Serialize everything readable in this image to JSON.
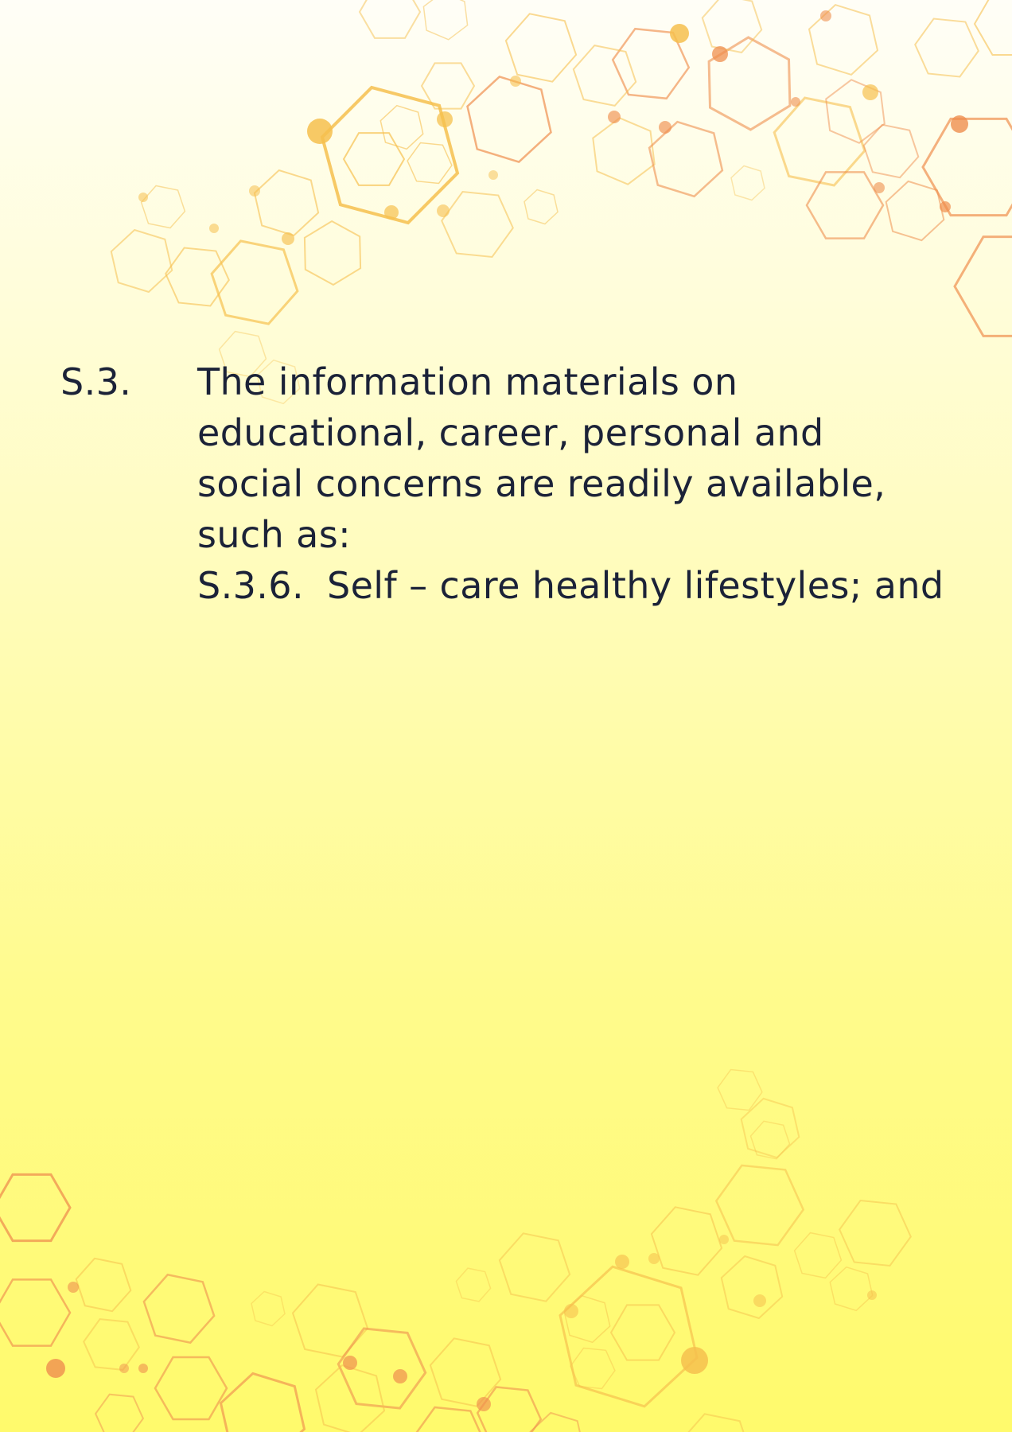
{
  "colors": {
    "text": "#1b2238",
    "hex_yellow": "#f6c04e",
    "hex_orange": "#ef8f4f",
    "background_top": "#fffef7",
    "background_bottom": "#fffa6c"
  },
  "decoration": {
    "icon": "hexagon-network-pattern"
  },
  "section": {
    "number": "S.3.",
    "text": "The information materials on educational, career, personal and social concerns are readily available, such as:",
    "subitem": {
      "number": "S.3.6.",
      "text": "Self – care healthy lifestyles; and"
    }
  }
}
